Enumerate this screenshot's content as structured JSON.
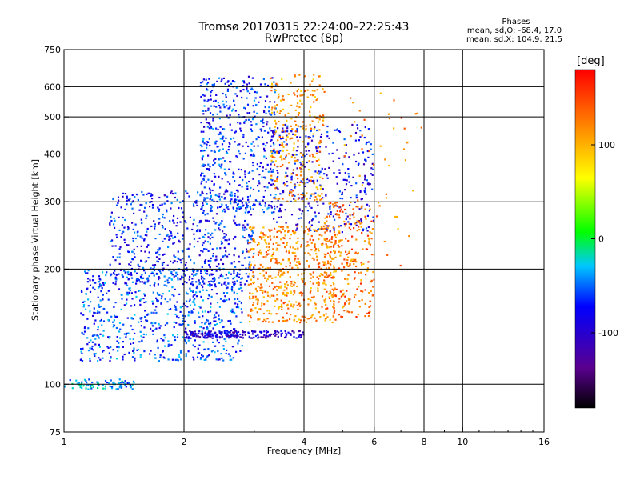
{
  "chart_data": {
    "type": "scatter",
    "title": "Tromsø 20170315 22:24:00–22:25:43",
    "subtitle": "RwPretec (8p)",
    "xlabel": "Frequency [MHz]",
    "ylabel": "Stationary phase Virtual Height [km]",
    "x_scale": "log",
    "y_scale": "log",
    "xlim": [
      1,
      16
    ],
    "ylim": [
      75,
      750
    ],
    "x_ticks": [
      1,
      2,
      4,
      6,
      8,
      10,
      16
    ],
    "x_tick_labels": [
      "1",
      "2",
      "4",
      "6",
      "8",
      "10",
      "16"
    ],
    "x_gridlines": [
      2,
      4,
      6,
      8,
      10
    ],
    "y_ticks": [
      75,
      100,
      200,
      300,
      400,
      500,
      600,
      750
    ],
    "y_tick_labels": [
      "75",
      "100",
      "200",
      "300",
      "400",
      "500",
      "600",
      "750"
    ],
    "y_gridlines": [
      100,
      200,
      300,
      400,
      500,
      600
    ],
    "grid": true,
    "stats": {
      "heading": "Phases",
      "o_line": "mean, sd,O: -68.4, 17.0",
      "x_line": "mean, sd,X: 104.9, 21.5"
    },
    "colorbar": {
      "label": "[deg]",
      "range": [
        -180,
        180
      ],
      "ticks": [
        100,
        0,
        -100
      ],
      "tick_labels": [
        "100",
        "0",
        "-100"
      ],
      "colormap": "rainbow",
      "colors": [
        "#000000",
        "#5a0090",
        "#0000ff",
        "#00c8ff",
        "#00ff00",
        "#ffff00",
        "#ff8000",
        "#ff0000"
      ]
    },
    "clusters": [
      {
        "name": "low E trace",
        "x_range": [
          1.0,
          1.5
        ],
        "y_range": [
          97,
          103
        ],
        "phase": -40,
        "count": 80
      },
      {
        "name": "blue body lower",
        "x_range": [
          1.1,
          2.8
        ],
        "y_range": [
          115,
          200
        ],
        "phase": -60,
        "count": 700
      },
      {
        "name": "blue body middle",
        "x_range": [
          1.3,
          3.0
        ],
        "y_range": [
          180,
          320
        ],
        "phase": -75,
        "count": 600
      },
      {
        "name": "blue upper",
        "x_range": [
          2.2,
          3.4
        ],
        "y_range": [
          280,
          640
        ],
        "phase": -70,
        "count": 500
      },
      {
        "name": "blue upper right",
        "x_range": [
          3.3,
          6.0
        ],
        "y_range": [
          250,
          480
        ],
        "phase": -85,
        "count": 350
      },
      {
        "name": "blue base trace",
        "x_range": [
          2.0,
          4.0
        ],
        "y_range": [
          132,
          138
        ],
        "phase": -100,
        "count": 200
      },
      {
        "name": "orange cluster",
        "x_range": [
          2.9,
          4.8
        ],
        "y_range": [
          145,
          260
        ],
        "phase": 120,
        "count": 550
      },
      {
        "name": "orange upper",
        "x_range": [
          3.3,
          4.5
        ],
        "y_range": [
          300,
          650
        ],
        "phase": 115,
        "count": 260
      },
      {
        "name": "orange right",
        "x_range": [
          4.5,
          6.0
        ],
        "y_range": [
          150,
          300
        ],
        "phase": 130,
        "count": 260
      },
      {
        "name": "orange sparse high",
        "x_range": [
          5.0,
          8.0
        ],
        "y_range": [
          200,
          600
        ],
        "phase": 125,
        "count": 50
      }
    ]
  }
}
